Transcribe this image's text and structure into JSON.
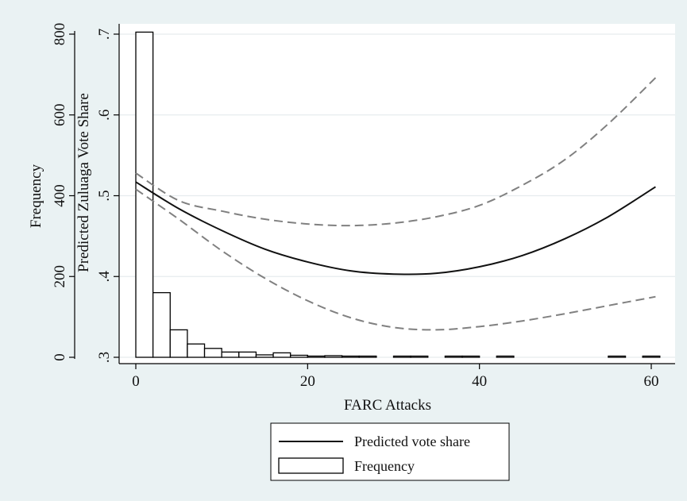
{
  "chart_data": {
    "type": "bar+line",
    "xlabel": "FARC Attacks",
    "ylabel_left": "Frequency",
    "ylabel_right": "Predicted Zuluaga Vote Share",
    "xlim": [
      -1,
      62
    ],
    "x_ticks": [
      0,
      20,
      40,
      60
    ],
    "frequency_axis": {
      "ticks": [
        0,
        200,
        400,
        600,
        800
      ],
      "range": [
        0,
        800
      ]
    },
    "vote_share_axis": {
      "ticks": [
        ".3",
        ".4",
        ".5",
        ".6",
        ".7"
      ],
      "range": [
        0.3,
        0.7
      ]
    },
    "grid": true,
    "histogram": {
      "name": "Frequency",
      "bin_width": 2,
      "bins": [
        {
          "x": 0,
          "count": 805
        },
        {
          "x": 2,
          "count": 160
        },
        {
          "x": 4,
          "count": 68
        },
        {
          "x": 6,
          "count": 33
        },
        {
          "x": 8,
          "count": 22
        },
        {
          "x": 10,
          "count": 13
        },
        {
          "x": 12,
          "count": 13
        },
        {
          "x": 14,
          "count": 6
        },
        {
          "x": 16,
          "count": 11
        },
        {
          "x": 18,
          "count": 5
        },
        {
          "x": 20,
          "count": 3
        },
        {
          "x": 22,
          "count": 4
        },
        {
          "x": 24,
          "count": 2
        },
        {
          "x": 26,
          "count": 2
        },
        {
          "x": 30,
          "count": 2
        },
        {
          "x": 32,
          "count": 2
        },
        {
          "x": 36,
          "count": 1
        },
        {
          "x": 38,
          "count": 1
        },
        {
          "x": 42,
          "count": 3
        },
        {
          "x": 55,
          "count": 2
        },
        {
          "x": 59,
          "count": 1
        }
      ]
    },
    "series": [
      {
        "name": "Predicted vote share",
        "style": "solid",
        "x": [
          0,
          5,
          10,
          15,
          20,
          25,
          30,
          35,
          40,
          45,
          50,
          55,
          60.5
        ],
        "y": [
          0.517,
          0.484,
          0.457,
          0.434,
          0.418,
          0.407,
          0.403,
          0.404,
          0.412,
          0.426,
          0.447,
          0.474,
          0.511
        ]
      },
      {
        "name": "upper bound",
        "style": "dashed",
        "x": [
          0,
          5,
          10,
          15,
          20,
          25,
          30,
          35,
          40,
          45,
          50,
          55,
          60.5
        ],
        "y": [
          0.528,
          0.494,
          0.481,
          0.471,
          0.465,
          0.463,
          0.466,
          0.474,
          0.488,
          0.513,
          0.545,
          0.589,
          0.646
        ]
      },
      {
        "name": "lower bound",
        "style": "dashed",
        "x": [
          0,
          5,
          10,
          15,
          20,
          25,
          30,
          35,
          40,
          45,
          50,
          55,
          60.5
        ],
        "y": [
          0.508,
          0.471,
          0.432,
          0.398,
          0.37,
          0.349,
          0.337,
          0.334,
          0.338,
          0.345,
          0.354,
          0.364,
          0.375
        ]
      }
    ],
    "legend": {
      "placement": "bottom",
      "entries": [
        {
          "label": "Predicted vote share",
          "symbol": "line"
        },
        {
          "label": "Frequency",
          "symbol": "box"
        }
      ]
    },
    "colors": {
      "outer_background": "#eaf2f3",
      "plot_background": "#ffffff",
      "grid": "#e6ecee",
      "bars": "#000000",
      "line": "#111111",
      "ci": "#808080"
    }
  }
}
